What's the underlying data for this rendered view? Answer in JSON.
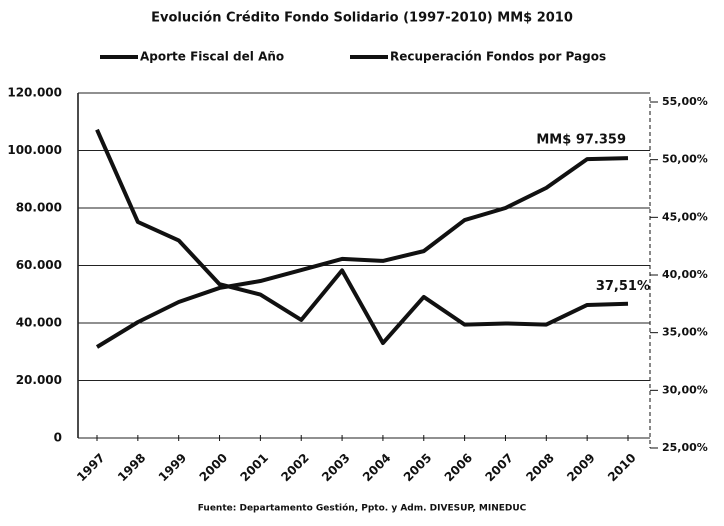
{
  "chart_data": {
    "type": "line",
    "title": "Evolución Crédito Fondo Solidario (1997-2010) MM$ 2010",
    "categories": [
      "1997",
      "1998",
      "1999",
      "2000",
      "2001",
      "2002",
      "2003",
      "2004",
      "2005",
      "2006",
      "2007",
      "2008",
      "2009",
      "2010"
    ],
    "series": [
      {
        "name": "Aporte Fiscal del Año",
        "color": "#111111",
        "values": [
          31650,
          40300,
          47300,
          52200,
          54600,
          58400,
          62300,
          61600,
          65000,
          75800,
          80000,
          87000,
          97000,
          97359
        ]
      },
      {
        "name": "Recuperación Fondos por Pagos",
        "color": "#111111",
        "axis": "y2",
        "values": [
          52.6,
          44.6,
          43.0,
          39.2,
          38.3,
          36.1,
          40.4,
          34.1,
          38.1,
          35.7,
          35.8,
          35.7,
          37.4,
          37.51
        ]
      }
    ],
    "ylim": [
      0,
      120000
    ],
    "yticks": [
      0,
      {
        "value": 20000,
        "label": "20.000"
      },
      {
        "value": 40000,
        "label": "40.000"
      },
      {
        "value": 60000,
        "label": "60.000"
      },
      {
        "value": 80000,
        "label": "80.000"
      },
      {
        "value": 100000,
        "label": "100.000"
      },
      {
        "value": 120000,
        "label": "120.000"
      }
    ],
    "y2lim": [
      25,
      55
    ],
    "y2ticks": [
      {
        "value": 25,
        "label": "25,00%"
      },
      {
        "value": 30,
        "label": "30,00%"
      },
      {
        "value": 35,
        "label": "35,00%"
      },
      {
        "value": 40,
        "label": "40,00%"
      },
      {
        "value": 45,
        "label": "45,00%"
      },
      {
        "value": 50,
        "label": "50,00%"
      },
      {
        "value": 55,
        "label": "55,00%"
      }
    ],
    "grid": true,
    "legend": "top",
    "annotations": [
      "MM$ 97.359",
      "37,51%"
    ],
    "source": "Fuente: Departamento Gestión, Ppto. y Adm. DIVESUP, MINEDUC"
  }
}
